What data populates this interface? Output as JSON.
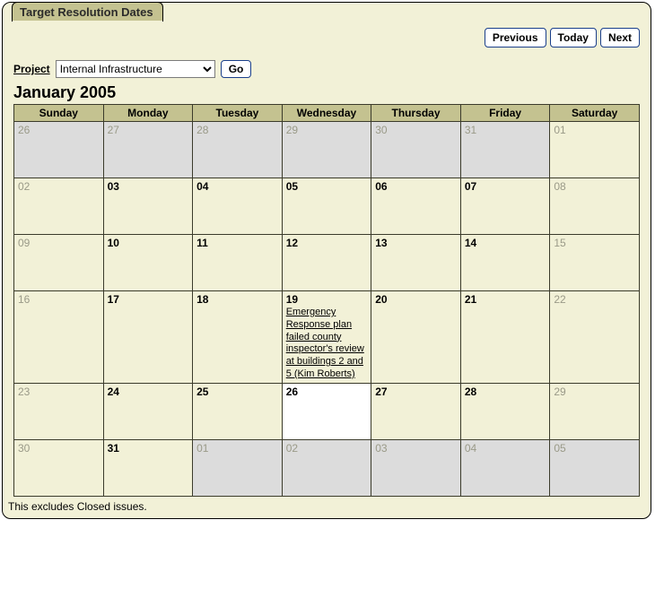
{
  "tab_title": "Target Resolution Dates",
  "nav": {
    "previous": "Previous",
    "today": "Today",
    "next": "Next"
  },
  "filter": {
    "label": "Project",
    "selected": "Internal Infrastructure",
    "go": "Go"
  },
  "month_title": "January 2005",
  "day_headers": [
    "Sunday",
    "Monday",
    "Tuesday",
    "Wednesday",
    "Thursday",
    "Friday",
    "Saturday"
  ],
  "weeks": [
    [
      {
        "n": "26",
        "other": true
      },
      {
        "n": "27",
        "other": true
      },
      {
        "n": "28",
        "other": true
      },
      {
        "n": "29",
        "other": true
      },
      {
        "n": "30",
        "other": true
      },
      {
        "n": "31",
        "other": true
      },
      {
        "n": "01",
        "wkend": true
      }
    ],
    [
      {
        "n": "02",
        "wkend": true
      },
      {
        "n": "03"
      },
      {
        "n": "04"
      },
      {
        "n": "05"
      },
      {
        "n": "06"
      },
      {
        "n": "07"
      },
      {
        "n": "08",
        "wkend": true
      }
    ],
    [
      {
        "n": "09",
        "wkend": true
      },
      {
        "n": "10"
      },
      {
        "n": "11"
      },
      {
        "n": "12"
      },
      {
        "n": "13"
      },
      {
        "n": "14"
      },
      {
        "n": "15",
        "wkend": true
      }
    ],
    [
      {
        "n": "16",
        "wkend": true
      },
      {
        "n": "17"
      },
      {
        "n": "18"
      },
      {
        "n": "19",
        "event": "Emergency Response plan failed county inspector's review at buildings 2 and 5 (Kim Roberts)"
      },
      {
        "n": "20"
      },
      {
        "n": "21"
      },
      {
        "n": "22",
        "wkend": true
      }
    ],
    [
      {
        "n": "23",
        "wkend": true
      },
      {
        "n": "24"
      },
      {
        "n": "25"
      },
      {
        "n": "26",
        "today": true
      },
      {
        "n": "27"
      },
      {
        "n": "28"
      },
      {
        "n": "29",
        "wkend": true
      }
    ],
    [
      {
        "n": "30",
        "wkend": true
      },
      {
        "n": "31"
      },
      {
        "n": "01",
        "other": true
      },
      {
        "n": "02",
        "other": true
      },
      {
        "n": "03",
        "other": true
      },
      {
        "n": "04",
        "other": true
      },
      {
        "n": "05",
        "other": true
      }
    ]
  ],
  "footer_note": "This excludes Closed issues.",
  "colors": {
    "panel_bg": "#f2f1d7",
    "header_bg": "#c4c290",
    "other_bg": "#dcdcdc",
    "today_bg": "#ffffff",
    "border": "#3b3b2b",
    "muted_text": "#9a9a88"
  }
}
